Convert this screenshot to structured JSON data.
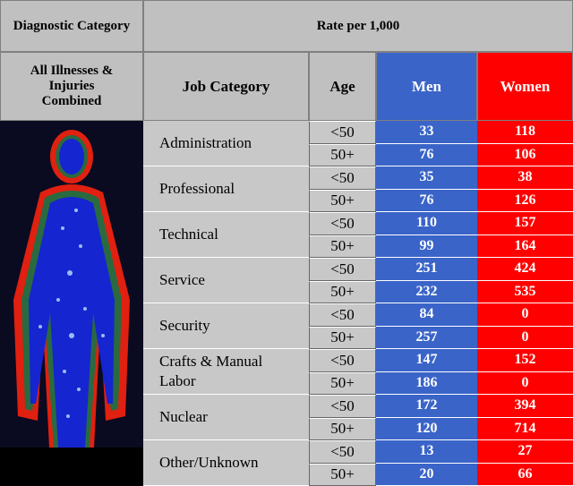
{
  "header": {
    "diagnostic_category": "Diagnostic Category",
    "rate": "Rate per 1,000"
  },
  "subheader": {
    "illness": "All Illnesses & Injuries Combined",
    "job": "Job Category",
    "age": "Age",
    "men": "Men",
    "women": "Women"
  },
  "rows": [
    {
      "job": "Administration",
      "entries": [
        {
          "age": "<50",
          "men": 33,
          "women": 118
        },
        {
          "age": "50+",
          "men": 76,
          "women": 106
        }
      ]
    },
    {
      "job": "Professional",
      "entries": [
        {
          "age": "<50",
          "men": 35,
          "women": 38
        },
        {
          "age": "50+",
          "men": 76,
          "women": 126
        }
      ]
    },
    {
      "job": "Technical",
      "entries": [
        {
          "age": "<50",
          "men": 110,
          "women": 157
        },
        {
          "age": "50+",
          "men": 99,
          "women": 164
        }
      ]
    },
    {
      "job": "Service",
      "entries": [
        {
          "age": "<50",
          "men": 251,
          "women": 424
        },
        {
          "age": "50+",
          "men": 232,
          "women": 535
        }
      ]
    },
    {
      "job": "Security",
      "entries": [
        {
          "age": "<50",
          "men": 84,
          "women": 0
        },
        {
          "age": "50+",
          "men": 257,
          "women": 0
        }
      ]
    },
    {
      "job": "Crafts & Manual Labor",
      "entries": [
        {
          "age": "<50",
          "men": 147,
          "women": 152
        },
        {
          "age": "50+",
          "men": 186,
          "women": 0
        }
      ]
    },
    {
      "job": "Nuclear",
      "entries": [
        {
          "age": "<50",
          "men": 172,
          "women": 394
        },
        {
          "age": "50+",
          "men": 120,
          "women": 714
        }
      ]
    },
    {
      "job": "Other/Unknown",
      "entries": [
        {
          "age": "<50",
          "men": 13,
          "women": 27
        },
        {
          "age": "50+",
          "men": 20,
          "women": 66
        }
      ]
    }
  ]
}
